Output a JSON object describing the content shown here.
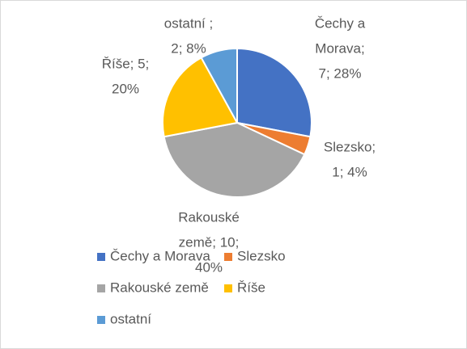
{
  "chart_data": {
    "type": "pie",
    "categories": [
      "Čechy a Morava",
      "Slezsko",
      "Rakouské země",
      "Říše",
      "ostatní"
    ],
    "values": [
      7,
      1,
      10,
      5,
      2
    ],
    "value_labels": [
      [
        "Čechy a",
        "Morava;",
        "7; 28%"
      ],
      [
        "Slezsko;",
        "1; 4%"
      ],
      [
        "Rakouské",
        "země; 10;",
        "40%"
      ],
      [
        "Říše; 5;",
        "20%"
      ],
      [
        "ostatní ;",
        "2; 8%"
      ]
    ],
    "colors": [
      "#4472c4",
      "#ed7d31",
      "#a5a5a5",
      "#ffc000",
      "#5b9bd5"
    ],
    "legend": "bottom"
  }
}
